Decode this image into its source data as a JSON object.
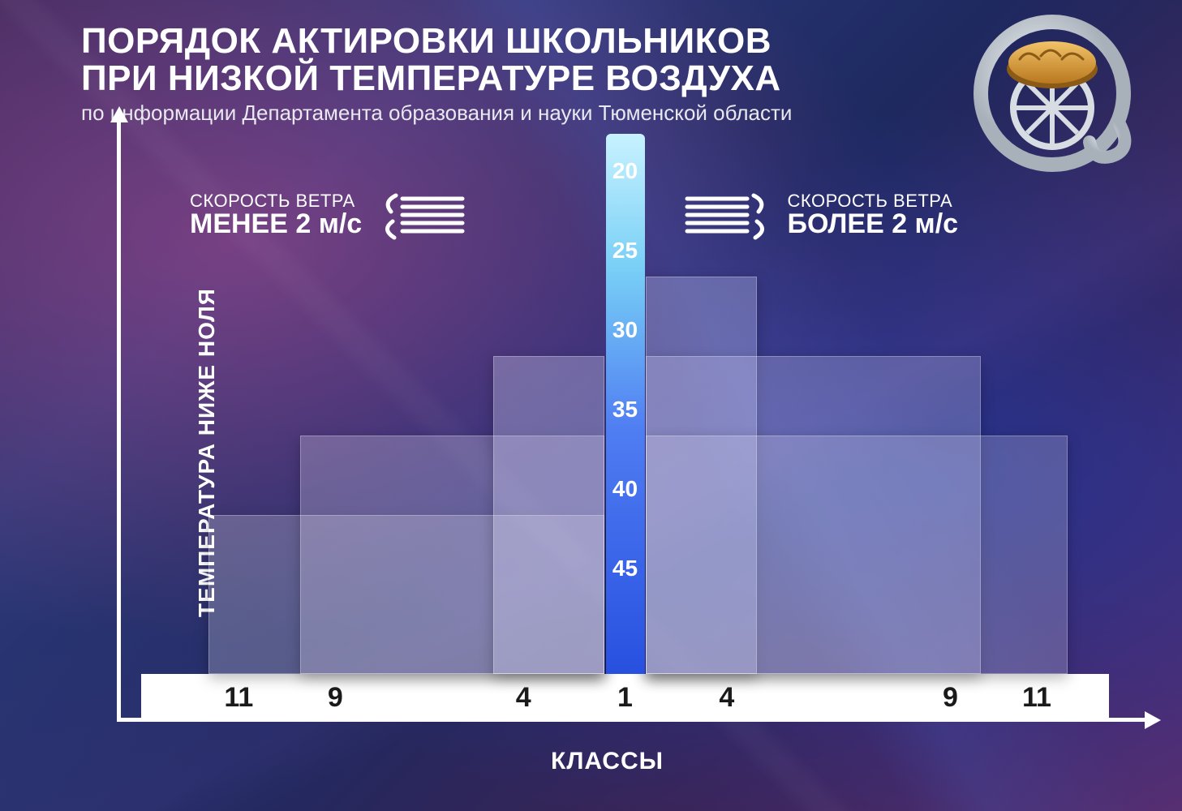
{
  "title_line1": "ПОРЯДОК АКТИРОВКИ ШКОЛЬНИКОВ",
  "title_line2": "ПРИ НИЗКОЙ ТЕМПЕРАТУРЕ ВОЗДУХА",
  "subtitle": "по информации Департамента образования и науки Тюменской области",
  "y_axis_label": "ТЕМПЕРАТУРА НИЖЕ НОЛЯ",
  "x_axis_label": "КЛАССЫ",
  "wind_left_caption": "СКОРОСТЬ ВЕТРА",
  "wind_left_value": "МЕНЕЕ 2 м/с",
  "wind_right_caption": "СКОРОСТЬ ВЕТРА",
  "wind_right_value": "БОЛЕЕ 2 м/с",
  "chart": {
    "type": "mirrored-bar",
    "temperature_ticks": [
      20,
      25,
      30,
      35,
      40,
      45
    ],
    "temperature_range": {
      "top_value": 16,
      "bottom_value": 50
    },
    "center_thermometer": {
      "top_value": 16
    },
    "x_ticks": [
      {
        "label": "11",
        "pos_pct": 12
      },
      {
        "label": "9",
        "pos_pct": 21.5
      },
      {
        "label": "4",
        "pos_pct": 40
      },
      {
        "label": "1",
        "pos_pct": 50
      },
      {
        "label": "4",
        "pos_pct": 60
      },
      {
        "label": "9",
        "pos_pct": 82
      },
      {
        "label": "11",
        "pos_pct": 90.5
      }
    ],
    "bars": [
      {
        "side": "left",
        "class_from": 11,
        "class_to": 9,
        "temp": 40,
        "left_pct": 9,
        "right_pct": 48,
        "fill": "rgba(255,255,255,.22)"
      },
      {
        "side": "left",
        "class_from": 9,
        "class_to": 4,
        "temp": 35,
        "left_pct": 18,
        "right_pct": 48,
        "fill": "rgba(240,230,250,.25)"
      },
      {
        "side": "left",
        "class_from": 4,
        "class_to": 1,
        "temp": 30,
        "left_pct": 37,
        "right_pct": 48,
        "fill": "rgba(230,230,255,.3)"
      },
      {
        "side": "right",
        "class_from": 1,
        "class_to": 4,
        "temp": 25,
        "left_pct": 52,
        "right_pct": 63,
        "fill": "rgba(210,215,255,.3)"
      },
      {
        "side": "right",
        "class_from": 4,
        "class_to": 9,
        "temp": 30,
        "left_pct": 52,
        "right_pct": 85,
        "fill": "rgba(225,225,255,.25)"
      },
      {
        "side": "right",
        "class_from": 9,
        "class_to": 11,
        "temp": 35,
        "left_pct": 52,
        "right_pct": 93.5,
        "fill": "rgba(235,235,250,.22)"
      }
    ],
    "bar_border_color": "rgba(255,255,255,.28)",
    "background_gradient_stops": [
      "#3a2b5e",
      "#2d3a7a",
      "#1e2960",
      "#3b2456",
      "#5a2d6e"
    ],
    "axis_color": "#ffffff",
    "xband_color": "#ffffff",
    "tick_text_color": "#1a1a1a",
    "thermo_gradient": [
      "#2850e0",
      "#4f7df2",
      "#78cff6",
      "#c8f2ff"
    ]
  },
  "logo": {
    "ring_color": "#d8dde3",
    "wheel_color": "#d8dde3",
    "bread_fill": "#e7a63f",
    "bread_fill_dark": "#c7842a"
  }
}
